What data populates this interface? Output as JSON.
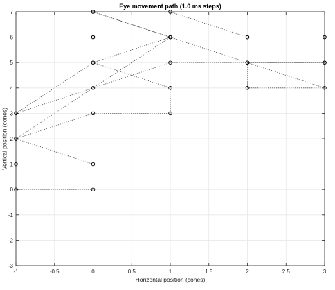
{
  "chart_data": {
    "type": "scatter",
    "title": "Eye movement path (1.0 ms steps)",
    "xlabel": "Horizontal position (cones)",
    "ylabel": "Vertical position (cones)",
    "xlim": [
      -1,
      3
    ],
    "ylim": [
      -3,
      7
    ],
    "xticks": [
      "-1",
      "-0.5",
      "0",
      "0.5",
      "1",
      "1.5",
      "2",
      "2.5",
      "3"
    ],
    "yticks": [
      "-3",
      "-2",
      "-1",
      "0",
      "1",
      "2",
      "3",
      "4",
      "5",
      "6",
      "7"
    ],
    "grid": true,
    "line_style": "dotted",
    "marker": "open-circle",
    "path": [
      [
        0,
        0
      ],
      [
        -1,
        0
      ],
      [
        -1,
        1
      ],
      [
        0,
        1
      ],
      [
        -1,
        2
      ],
      [
        0,
        3
      ],
      [
        1,
        3
      ],
      [
        1,
        4
      ],
      [
        0,
        5
      ],
      [
        0,
        6
      ],
      [
        1,
        6
      ],
      [
        3,
        6
      ],
      [
        3,
        5
      ],
      [
        2,
        5
      ],
      [
        1,
        5
      ],
      [
        0,
        4
      ],
      [
        -1,
        3
      ],
      [
        0,
        5
      ],
      [
        1,
        6
      ],
      [
        2,
        6
      ],
      [
        1,
        7
      ],
      [
        0,
        7
      ],
      [
        2,
        5
      ],
      [
        3,
        4
      ],
      [
        2,
        4
      ],
      [
        2,
        5
      ],
      [
        3,
        5
      ],
      [
        3,
        6
      ],
      [
        2,
        6
      ],
      [
        1,
        6
      ],
      [
        0,
        7
      ],
      [
        0,
        6
      ],
      [
        1,
        6
      ],
      [
        -1,
        2
      ]
    ]
  }
}
